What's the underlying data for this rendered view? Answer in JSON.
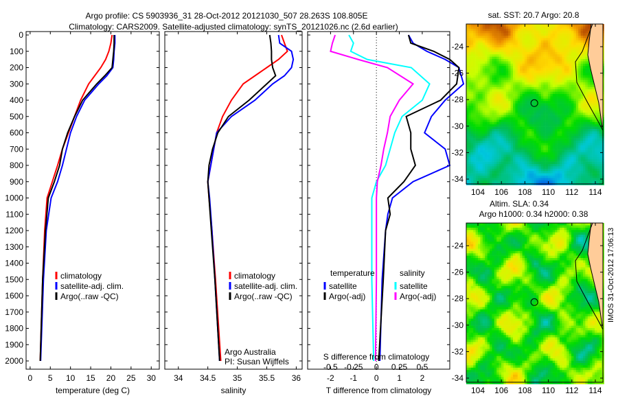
{
  "title_line1": "Argo profile: CS 5903936_31 28-Oct-2012 20121030_507 28.263S 108.805E",
  "title_line2": "Climatology: CARS2009. Satellite-adjusted climatology: synTS_20121026.nc (2.6d earlier)",
  "colors": {
    "climatology": "#ff0000",
    "satellite": "#0000ff",
    "argo": "#000000",
    "s_sat": "#00ffff",
    "s_argo": "#ff00ff",
    "land": "#ffcc99"
  },
  "chart_data": [
    {
      "type": "line",
      "name": "temperature",
      "xlabel": "temperature (deg C)",
      "ylabel": "",
      "xlim": [
        -1,
        32
      ],
      "ylim": [
        2050,
        0
      ],
      "xticks": [
        0,
        5,
        10,
        15,
        20,
        25,
        30
      ],
      "yticks": [
        0,
        100,
        200,
        300,
        400,
        500,
        600,
        700,
        800,
        900,
        1000,
        1100,
        1200,
        1300,
        1400,
        1500,
        1600,
        1700,
        1800,
        1900,
        2000
      ],
      "legend": [
        "climatology",
        "satellite-adj. clim.",
        "Argo(..raw -QC)"
      ],
      "legend_position": "lower-middle",
      "depth": [
        0,
        50,
        100,
        150,
        200,
        250,
        300,
        400,
        500,
        600,
        700,
        800,
        900,
        1000,
        1200,
        1500,
        2000
      ],
      "series": [
        {
          "name": "climatology",
          "values": [
            20.3,
            20.0,
            19.5,
            18.7,
            17.5,
            16.0,
            14.5,
            12.5,
            11.0,
            9.5,
            8.0,
            6.8,
            5.5,
            4.2,
            3.6,
            3.1,
            2.5
          ]
        },
        {
          "name": "satellite-adj. clim.",
          "values": [
            21.0,
            21.0,
            20.8,
            20.7,
            20.5,
            19.0,
            17.0,
            13.5,
            11.5,
            10.0,
            9.0,
            8.0,
            6.8,
            5.2,
            4.0,
            3.3,
            2.6
          ]
        },
        {
          "name": "Argo(..raw -QC)",
          "values": [
            20.8,
            20.8,
            20.7,
            20.5,
            20.3,
            18.5,
            16.5,
            13.0,
            11.0,
            9.3,
            8.0,
            7.3,
            6.0,
            4.5,
            3.8,
            3.1,
            2.5
          ]
        }
      ]
    },
    {
      "type": "line",
      "name": "salinity",
      "xlabel": "salinity",
      "xlim": [
        33.77,
        36.1
      ],
      "ylim": [
        2050,
        0
      ],
      "xticks": [
        34,
        34.5,
        35,
        35.5,
        36
      ],
      "legend": [
        "climatology",
        "satellite-adj. clim.",
        "Argo(..raw -QC)"
      ],
      "annotation": [
        "Argo Australia",
        "PI: Susan Wijffels"
      ],
      "depth": [
        0,
        50,
        100,
        150,
        200,
        250,
        300,
        400,
        500,
        600,
        700,
        800,
        900,
        1000,
        1200,
        1500,
        2000
      ],
      "series": [
        {
          "name": "climatology",
          "values": [
            35.75,
            35.8,
            35.85,
            35.7,
            35.5,
            35.3,
            35.1,
            34.9,
            34.75,
            34.65,
            34.6,
            34.55,
            34.5,
            34.52,
            34.57,
            34.63,
            34.72
          ]
        },
        {
          "name": "satellite-adj. clim.",
          "values": [
            35.7,
            35.72,
            35.92,
            35.95,
            35.92,
            35.8,
            35.6,
            35.3,
            34.9,
            34.65,
            34.6,
            34.55,
            34.5,
            34.53,
            34.57,
            34.62,
            34.7
          ]
        },
        {
          "name": "Argo(..raw -QC)",
          "values": [
            35.55,
            35.57,
            35.58,
            35.58,
            35.6,
            35.65,
            35.5,
            35.2,
            34.85,
            34.67,
            34.58,
            34.52,
            34.5,
            34.52,
            34.56,
            34.62,
            34.7
          ]
        }
      ]
    },
    {
      "type": "line",
      "name": "difference",
      "xlabel": "T difference from climatology",
      "x2label": "S difference from climatology",
      "xlim": [
        -3,
        3.2
      ],
      "ylim": [
        2050,
        0
      ],
      "xticks": [
        -2,
        -1,
        0,
        1,
        2
      ],
      "x2ticks": [
        -0.5,
        -0.25,
        0,
        0.25,
        0.5
      ],
      "x2tick_labels": [
        "-0.5",
        "-0.25",
        "0",
        "0.25",
        "0.5"
      ],
      "legend_headers": [
        "temperature",
        "salinity"
      ],
      "legend": [
        "satellite",
        "Argo(-adj)",
        "satellite",
        "Argo(-adj)"
      ],
      "depth": [
        0,
        50,
        100,
        150,
        200,
        300,
        400,
        500,
        600,
        700,
        800,
        900,
        1000,
        1100,
        1200,
        1500,
        2000
      ],
      "series": [
        {
          "name": "T satellite",
          "values": [
            1.4,
            1.6,
            2.2,
            3.0,
            3.6,
            3.8,
            3.0,
            2.4,
            2.1,
            3.0,
            3.2,
            1.6,
            0.7,
            0.5,
            0.4,
            0.25,
            0.15
          ]
        },
        {
          "name": "T Argo(-adj)",
          "values": [
            1.4,
            1.5,
            2.5,
            3.2,
            3.6,
            3.5,
            2.8,
            1.3,
            1.5,
            1.5,
            1.7,
            1.2,
            0.5,
            0.6,
            0.4,
            0.3,
            0.1
          ]
        },
        {
          "name": "S satellite",
          "values": [
            -0.3,
            -0.25,
            -0.28,
            -0.1,
            0.38,
            0.58,
            0.5,
            0.28,
            0.2,
            0.15,
            0.1,
            0.0,
            -0.05,
            -0.05,
            -0.05,
            -0.05,
            -0.03
          ]
        },
        {
          "name": "S Argo(-adj)",
          "values": [
            -0.45,
            -0.48,
            -0.5,
            -0.2,
            0.12,
            0.4,
            0.25,
            0.15,
            0.12,
            0.08,
            0.05,
            0.01,
            0.0,
            0.0,
            0.0,
            0.0,
            -0.01
          ]
        }
      ]
    },
    {
      "type": "heatmap",
      "name": "sst-map",
      "title": "sat. SST: 20.7 Argo: 20.8",
      "xlim": [
        103,
        114.7
      ],
      "ylim": [
        -34.3,
        -22.2
      ],
      "xticks": [
        104,
        106,
        108,
        110,
        112,
        114
      ],
      "yticks": [
        -24,
        -26,
        -28,
        -30,
        -32,
        -34
      ],
      "marker": {
        "lon": 108.805,
        "lat": -28.263
      }
    },
    {
      "type": "heatmap",
      "name": "sla-map",
      "title": "Altim. SLA: 0.34",
      "subtitle": "Argo h1000: 0.34 h2000: 0.38",
      "xlim": [
        103,
        114.7
      ],
      "ylim": [
        -34.3,
        -22.2
      ],
      "xticks": [
        104,
        106,
        108,
        110,
        112,
        114
      ],
      "yticks": [
        -24,
        -26,
        -28,
        -30,
        -32,
        -34
      ],
      "marker": {
        "lon": 108.805,
        "lat": -28.263
      }
    }
  ],
  "footer": "IMOS 31-Oct-2012 17:06:13"
}
